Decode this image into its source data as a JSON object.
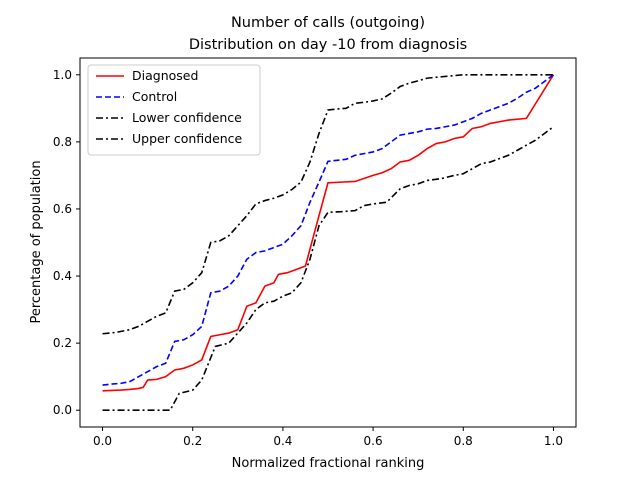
{
  "chart_data": {
    "type": "line",
    "title": "Number of calls (outgoing)",
    "subtitle": "Distribution on day -10 from diagnosis",
    "xlabel": "Normalized fractional ranking",
    "ylabel": "Percentage of population",
    "xlim": [
      -0.05,
      1.05
    ],
    "ylim": [
      -0.05,
      1.05
    ],
    "xticks": [
      "0.0",
      "0.2",
      "0.4",
      "0.6",
      "0.8",
      "1.0"
    ],
    "yticks": [
      "0.0",
      "0.2",
      "0.4",
      "0.6",
      "0.8",
      "1.0"
    ],
    "grid": false,
    "legend_position": "top-left",
    "series": [
      {
        "name": "Diagnosed",
        "color": "#ff0000",
        "dash": "solid",
        "points": [
          [
            0.0,
            0.058
          ],
          [
            0.04,
            0.06
          ],
          [
            0.06,
            0.062
          ],
          [
            0.08,
            0.065
          ],
          [
            0.09,
            0.068
          ],
          [
            0.1,
            0.09
          ],
          [
            0.12,
            0.092
          ],
          [
            0.14,
            0.1
          ],
          [
            0.16,
            0.12
          ],
          [
            0.18,
            0.125
          ],
          [
            0.2,
            0.135
          ],
          [
            0.22,
            0.15
          ],
          [
            0.24,
            0.22
          ],
          [
            0.26,
            0.225
          ],
          [
            0.28,
            0.23
          ],
          [
            0.3,
            0.24
          ],
          [
            0.32,
            0.31
          ],
          [
            0.34,
            0.32
          ],
          [
            0.36,
            0.37
          ],
          [
            0.38,
            0.38
          ],
          [
            0.39,
            0.405
          ],
          [
            0.41,
            0.41
          ],
          [
            0.43,
            0.42
          ],
          [
            0.45,
            0.43
          ],
          [
            0.46,
            0.48
          ],
          [
            0.48,
            0.58
          ],
          [
            0.5,
            0.678
          ],
          [
            0.53,
            0.68
          ],
          [
            0.56,
            0.682
          ],
          [
            0.6,
            0.7
          ],
          [
            0.62,
            0.708
          ],
          [
            0.64,
            0.72
          ],
          [
            0.66,
            0.74
          ],
          [
            0.68,
            0.745
          ],
          [
            0.7,
            0.76
          ],
          [
            0.72,
            0.78
          ],
          [
            0.74,
            0.795
          ],
          [
            0.76,
            0.8
          ],
          [
            0.78,
            0.81
          ],
          [
            0.8,
            0.815
          ],
          [
            0.82,
            0.84
          ],
          [
            0.84,
            0.845
          ],
          [
            0.86,
            0.855
          ],
          [
            0.88,
            0.86
          ],
          [
            0.9,
            0.865
          ],
          [
            0.94,
            0.87
          ],
          [
            1.0,
            1.0
          ]
        ]
      },
      {
        "name": "Control",
        "color": "#0000ff",
        "dash": "dashed",
        "points": [
          [
            0.0,
            0.075
          ],
          [
            0.02,
            0.078
          ],
          [
            0.04,
            0.08
          ],
          [
            0.06,
            0.085
          ],
          [
            0.08,
            0.1
          ],
          [
            0.1,
            0.115
          ],
          [
            0.12,
            0.13
          ],
          [
            0.14,
            0.14
          ],
          [
            0.16,
            0.205
          ],
          [
            0.18,
            0.21
          ],
          [
            0.2,
            0.225
          ],
          [
            0.22,
            0.25
          ],
          [
            0.24,
            0.35
          ],
          [
            0.26,
            0.355
          ],
          [
            0.28,
            0.37
          ],
          [
            0.3,
            0.4
          ],
          [
            0.32,
            0.45
          ],
          [
            0.34,
            0.47
          ],
          [
            0.36,
            0.475
          ],
          [
            0.38,
            0.485
          ],
          [
            0.4,
            0.495
          ],
          [
            0.42,
            0.52
          ],
          [
            0.44,
            0.55
          ],
          [
            0.46,
            0.62
          ],
          [
            0.48,
            0.68
          ],
          [
            0.5,
            0.742
          ],
          [
            0.52,
            0.745
          ],
          [
            0.54,
            0.748
          ],
          [
            0.56,
            0.76
          ],
          [
            0.58,
            0.765
          ],
          [
            0.6,
            0.77
          ],
          [
            0.62,
            0.78
          ],
          [
            0.64,
            0.8
          ],
          [
            0.66,
            0.82
          ],
          [
            0.7,
            0.83
          ],
          [
            0.72,
            0.838
          ],
          [
            0.74,
            0.84
          ],
          [
            0.76,
            0.845
          ],
          [
            0.78,
            0.85
          ],
          [
            0.8,
            0.86
          ],
          [
            0.82,
            0.87
          ],
          [
            0.84,
            0.885
          ],
          [
            0.86,
            0.895
          ],
          [
            0.88,
            0.905
          ],
          [
            0.9,
            0.915
          ],
          [
            0.92,
            0.93
          ],
          [
            0.94,
            0.948
          ],
          [
            0.96,
            0.96
          ],
          [
            0.98,
            0.98
          ],
          [
            1.0,
            1.0
          ]
        ]
      },
      {
        "name": "Lower confidence",
        "color": "#000000",
        "dash": "dashdot",
        "points": [
          [
            0.0,
            0.0
          ],
          [
            0.03,
            0.0
          ],
          [
            0.06,
            0.0
          ],
          [
            0.1,
            0.0
          ],
          [
            0.15,
            0.0
          ],
          [
            0.17,
            0.05
          ],
          [
            0.2,
            0.06
          ],
          [
            0.22,
            0.09
          ],
          [
            0.25,
            0.19
          ],
          [
            0.28,
            0.2
          ],
          [
            0.3,
            0.23
          ],
          [
            0.32,
            0.26
          ],
          [
            0.34,
            0.3
          ],
          [
            0.36,
            0.32
          ],
          [
            0.38,
            0.325
          ],
          [
            0.4,
            0.34
          ],
          [
            0.42,
            0.35
          ],
          [
            0.44,
            0.38
          ],
          [
            0.46,
            0.45
          ],
          [
            0.48,
            0.55
          ],
          [
            0.5,
            0.59
          ],
          [
            0.53,
            0.592
          ],
          [
            0.56,
            0.595
          ],
          [
            0.58,
            0.61
          ],
          [
            0.6,
            0.615
          ],
          [
            0.63,
            0.62
          ],
          [
            0.66,
            0.66
          ],
          [
            0.68,
            0.67
          ],
          [
            0.7,
            0.675
          ],
          [
            0.72,
            0.685
          ],
          [
            0.75,
            0.69
          ],
          [
            0.78,
            0.7
          ],
          [
            0.8,
            0.705
          ],
          [
            0.82,
            0.72
          ],
          [
            0.84,
            0.735
          ],
          [
            0.86,
            0.74
          ],
          [
            0.88,
            0.75
          ],
          [
            0.9,
            0.76
          ],
          [
            0.92,
            0.775
          ],
          [
            0.94,
            0.79
          ],
          [
            0.96,
            0.805
          ],
          [
            0.98,
            0.825
          ],
          [
            1.0,
            0.845
          ]
        ]
      },
      {
        "name": "Upper confidence",
        "color": "#000000",
        "dash": "dashdot",
        "points": [
          [
            0.0,
            0.228
          ],
          [
            0.03,
            0.232
          ],
          [
            0.06,
            0.24
          ],
          [
            0.08,
            0.25
          ],
          [
            0.1,
            0.265
          ],
          [
            0.12,
            0.28
          ],
          [
            0.14,
            0.29
          ],
          [
            0.16,
            0.355
          ],
          [
            0.18,
            0.36
          ],
          [
            0.2,
            0.38
          ],
          [
            0.22,
            0.41
          ],
          [
            0.24,
            0.5
          ],
          [
            0.26,
            0.505
          ],
          [
            0.28,
            0.52
          ],
          [
            0.3,
            0.55
          ],
          [
            0.32,
            0.58
          ],
          [
            0.34,
            0.615
          ],
          [
            0.36,
            0.625
          ],
          [
            0.38,
            0.632
          ],
          [
            0.4,
            0.642
          ],
          [
            0.42,
            0.658
          ],
          [
            0.44,
            0.68
          ],
          [
            0.46,
            0.74
          ],
          [
            0.48,
            0.825
          ],
          [
            0.5,
            0.895
          ],
          [
            0.52,
            0.898
          ],
          [
            0.54,
            0.9
          ],
          [
            0.56,
            0.915
          ],
          [
            0.58,
            0.918
          ],
          [
            0.6,
            0.922
          ],
          [
            0.62,
            0.928
          ],
          [
            0.64,
            0.945
          ],
          [
            0.66,
            0.965
          ],
          [
            0.68,
            0.975
          ],
          [
            0.7,
            0.982
          ],
          [
            0.72,
            0.99
          ],
          [
            0.76,
            0.995
          ],
          [
            0.8,
            1.0
          ],
          [
            0.84,
            1.0
          ],
          [
            0.9,
            1.0
          ],
          [
            1.0,
            1.0
          ]
        ]
      }
    ]
  }
}
